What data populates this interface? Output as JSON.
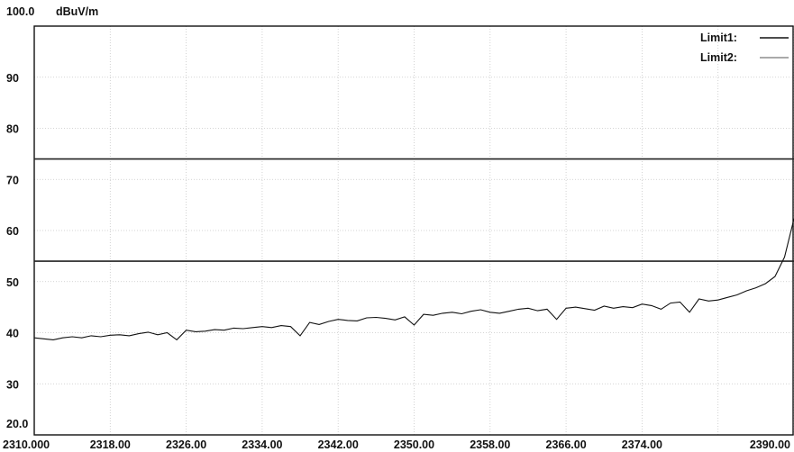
{
  "chart_data": {
    "type": "line",
    "title": "",
    "xlabel": "",
    "ylabel": "dBuV/m",
    "xlim": [
      2310.0,
      2390.0
    ],
    "ylim": [
      20.0,
      100.0
    ],
    "grid": true,
    "legend_position": "top-right",
    "x_tick_labels": [
      "2310.000",
      "2318.00",
      "2326.00",
      "2334.00",
      "2342.00",
      "2350.00",
      "2358.00",
      "2366.00",
      "2374.00",
      "2390.00"
    ],
    "x_ticks": [
      2310,
      2318,
      2326,
      2334,
      2342,
      2350,
      2358,
      2366,
      2374,
      2390
    ],
    "x_grid": [
      2310,
      2318,
      2326,
      2334,
      2342,
      2350,
      2358,
      2366,
      2374,
      2382,
      2390
    ],
    "y_tick_labels": [
      "100.0",
      "90",
      "80",
      "70",
      "60",
      "50",
      "40",
      "30",
      "20.0"
    ],
    "y_ticks": [
      100,
      90,
      80,
      70,
      60,
      50,
      40,
      30,
      20
    ],
    "limits": [
      {
        "name": "Limit1:",
        "value": 74
      },
      {
        "name": "Limit2:",
        "value": 54
      }
    ],
    "series": [
      {
        "x": [
          2310,
          2311,
          2312,
          2313,
          2314,
          2315,
          2316,
          2317,
          2318,
          2319,
          2320,
          2321,
          2322,
          2323,
          2324,
          2325,
          2326,
          2327,
          2328,
          2329,
          2330,
          2331,
          2332,
          2333,
          2334,
          2335,
          2336,
          2337,
          2338,
          2339,
          2340,
          2341,
          2342,
          2343,
          2344,
          2345,
          2346,
          2347,
          2348,
          2349,
          2350,
          2351,
          2352,
          2353,
          2354,
          2355,
          2356,
          2357,
          2358,
          2359,
          2360,
          2361,
          2362,
          2363,
          2364,
          2365,
          2366,
          2367,
          2368,
          2369,
          2370,
          2371,
          2372,
          2373,
          2374,
          2375,
          2376,
          2377,
          2378,
          2379,
          2380,
          2381,
          2382,
          2383,
          2384,
          2385,
          2386,
          2387,
          2388,
          2389,
          2390
        ],
        "values": [
          39.0,
          38.8,
          38.6,
          39.0,
          39.2,
          39.0,
          39.4,
          39.2,
          39.5,
          39.6,
          39.4,
          39.8,
          40.1,
          39.6,
          40.0,
          38.6,
          40.5,
          40.2,
          40.3,
          40.6,
          40.5,
          40.9,
          40.8,
          41.0,
          41.2,
          41.0,
          41.4,
          41.2,
          39.4,
          42.0,
          41.6,
          42.2,
          42.6,
          42.4,
          42.3,
          42.9,
          43.0,
          42.8,
          42.5,
          43.1,
          41.5,
          43.6,
          43.4,
          43.8,
          44.0,
          43.7,
          44.2,
          44.5,
          44.0,
          43.8,
          44.2,
          44.6,
          44.8,
          44.3,
          44.6,
          42.6,
          44.8,
          45.0,
          44.7,
          44.4,
          45.2,
          44.8,
          45.1,
          44.9,
          45.6,
          45.3,
          44.6,
          45.8,
          46.0,
          44.0,
          46.6,
          46.2,
          46.4,
          46.9,
          47.4,
          48.2,
          48.8,
          49.6,
          51.0,
          54.8,
          62.3
        ]
      }
    ]
  }
}
